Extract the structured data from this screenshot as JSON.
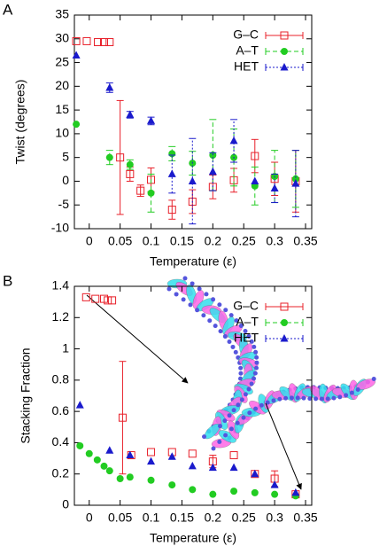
{
  "chart_data": [
    {
      "type": "scatter",
      "panel_label": "A",
      "x_label": "Temperature (ε)",
      "y_label": "Twist (degrees)",
      "xlim": [
        -0.024,
        0.36
      ],
      "xticks": [
        0,
        0.05,
        0.1,
        0.15,
        0.2,
        0.25,
        0.3,
        0.35
      ],
      "ylim": [
        -10,
        35
      ],
      "yticks": [
        -10,
        -5,
        0,
        5,
        10,
        15,
        20,
        25,
        30,
        35
      ],
      "legend": "top-right",
      "series": [
        {
          "name": "G–C",
          "color": "#e8202a",
          "marker": "square-open",
          "line_style": "solid",
          "x": [
            -0.021,
            -0.004,
            0.014,
            0.024,
            0.033,
            0.05,
            0.066,
            0.083,
            0.1,
            0.134,
            0.167,
            0.2,
            0.234,
            0.268,
            0.3,
            0.334
          ],
          "values": [
            29.5,
            29.5,
            29.3,
            29.3,
            29.3,
            5,
            1.5,
            -2,
            0.3,
            -6,
            -4.3,
            -1.2,
            0.2,
            5.3,
            0.5,
            0
          ],
          "errors": [
            null,
            null,
            null,
            null,
            null,
            12,
            1.5,
            1.2,
            2.5,
            2,
            2.5,
            2.5,
            2.5,
            3.5,
            3.5,
            6.5
          ]
        },
        {
          "name": "A–T",
          "color": "#22cc22",
          "marker": "circle",
          "line_style": "dashed",
          "x": [
            -0.021,
            0.033,
            0.066,
            0.1,
            0.134,
            0.167,
            0.2,
            0.234,
            0.268,
            0.3,
            0.334
          ],
          "values": [
            12,
            5,
            3.5,
            -2.5,
            5.8,
            3.8,
            5.5,
            5,
            -1,
            1,
            0.5
          ],
          "errors": [
            null,
            1.5,
            1,
            4,
            1.5,
            2.5,
            7.5,
            6,
            4,
            5.5,
            6
          ]
        },
        {
          "name": "HET",
          "color": "#1a1acc",
          "marker": "triangle",
          "line_style": "dotted",
          "x": [
            -0.021,
            0.033,
            0.066,
            0.1,
            0.134,
            0.167,
            0.2,
            0.234,
            0.268,
            0.3,
            0.334
          ],
          "values": [
            26.5,
            19.7,
            14,
            12.7,
            1.5,
            0,
            2,
            8.5,
            0,
            -1.5,
            -0.5
          ],
          "errors": [
            null,
            1,
            0.7,
            0.8,
            4,
            9,
            4,
            4.5,
            null,
            3,
            7
          ]
        }
      ]
    },
    {
      "type": "scatter",
      "panel_label": "B",
      "x_label": "Temperature (ε)",
      "y_label": "Stacking Fraction",
      "xlim": [
        -0.024,
        0.36
      ],
      "xticks": [
        0,
        0.05,
        0.1,
        0.15,
        0.2,
        0.25,
        0.3,
        0.35
      ],
      "ylim": [
        0,
        1.4
      ],
      "yticks": [
        0,
        0.2,
        0.4,
        0.6,
        0.8,
        1,
        1.2,
        1.4
      ],
      "legend": "top-right",
      "series": [
        {
          "name": "G–C",
          "color": "#e8202a",
          "marker": "square-open",
          "line_style": "solid",
          "x": [
            -0.005,
            0.01,
            0.024,
            0.03,
            0.037,
            0.054,
            0.068,
            0.1,
            0.134,
            0.167,
            0.2,
            0.234,
            0.268,
            0.3,
            0.334
          ],
          "values": [
            1.33,
            1.32,
            1.32,
            1.31,
            1.31,
            0.56,
            0.32,
            0.34,
            0.34,
            0.33,
            0.28,
            0.32,
            0.2,
            0.17,
            0.07
          ],
          "errors": [
            null,
            null,
            null,
            null,
            null,
            0.36,
            null,
            null,
            null,
            null,
            0.04,
            null,
            null,
            0.05,
            null
          ]
        },
        {
          "name": "A–T",
          "color": "#22cc22",
          "marker": "circle",
          "line_style": "dashed",
          "x": [
            -0.015,
            0.0,
            0.013,
            0.024,
            0.033,
            0.05,
            0.066,
            0.1,
            0.134,
            0.167,
            0.2,
            0.234,
            0.268,
            0.3,
            0.334
          ],
          "values": [
            0.38,
            0.33,
            0.29,
            0.25,
            0.22,
            0.17,
            0.18,
            0.16,
            0.13,
            0.1,
            0.07,
            0.09,
            0.08,
            0.07,
            0.06
          ],
          "errors": [
            null,
            null,
            null,
            null,
            null,
            null,
            null,
            null,
            null,
            null,
            null,
            null,
            null,
            null,
            null
          ]
        },
        {
          "name": "HET",
          "color": "#1a1acc",
          "marker": "triangle",
          "line_style": "dotted",
          "x": [
            -0.015,
            0.033,
            0.066,
            0.1,
            0.134,
            0.167,
            0.2,
            0.234,
            0.268,
            0.3,
            0.334
          ],
          "values": [
            0.64,
            0.35,
            0.32,
            0.28,
            0.31,
            0.25,
            0.24,
            0.24,
            0.2,
            0.13,
            0.08
          ],
          "errors": [
            null,
            null,
            null,
            null,
            null,
            null,
            null,
            null,
            null,
            null,
            null
          ]
        }
      ]
    }
  ]
}
